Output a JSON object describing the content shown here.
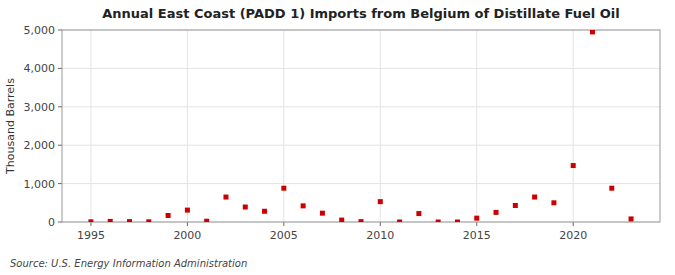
{
  "chart_data": {
    "type": "scatter",
    "title": "Annual East Coast (PADD 1) Imports from Belgium of Distillate Fuel Oil",
    "y_label": "Thousand Barrels",
    "annotations": [
      "Source: U.S. Energy Information Administration"
    ],
    "x": [
      1995,
      1996,
      1997,
      1998,
      1999,
      2000,
      2001,
      2002,
      2003,
      2004,
      2005,
      2006,
      2007,
      2008,
      2009,
      2010,
      2011,
      2012,
      2013,
      2014,
      2015,
      2016,
      2017,
      2018,
      2019,
      2020,
      2021,
      2022,
      2023
    ],
    "values": [
      5,
      15,
      10,
      5,
      170,
      310,
      20,
      650,
      390,
      280,
      880,
      420,
      230,
      50,
      10,
      530,
      0,
      220,
      0,
      0,
      100,
      250,
      430,
      650,
      500,
      1470,
      4950,
      880,
      80
    ],
    "color": "#cc0000",
    "marker": "square",
    "xlim": [
      1993.5,
      2024.5
    ],
    "xticks": [
      1995,
      2000,
      2005,
      2010,
      2015,
      2020
    ],
    "ylim": [
      0,
      5000
    ],
    "yticks": [
      0,
      {
        "value": 1000,
        "label": "1,000"
      },
      {
        "value": 2000,
        "label": "2,000"
      },
      {
        "value": 3000,
        "label": "3,000"
      },
      {
        "value": 4000,
        "label": "4,000"
      },
      {
        "value": 5000,
        "label": "5,000"
      }
    ],
    "grid": true
  }
}
